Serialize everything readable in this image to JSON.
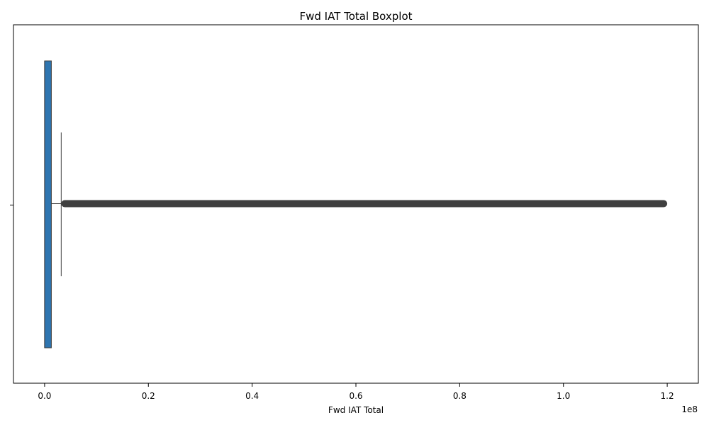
{
  "chart_data": {
    "type": "boxplot",
    "orientation": "horizontal",
    "title": "Fwd IAT Total Boxplot",
    "xlabel": "Fwd IAT Total",
    "ylabel": "",
    "axis_multiplier_label": "1e8",
    "xlim": [
      -6000000,
      126000000
    ],
    "x_ticks": [
      0,
      20000000,
      40000000,
      60000000,
      80000000,
      100000000,
      120000000
    ],
    "x_tick_labels": [
      "0.0",
      "0.2",
      "0.4",
      "0.6",
      "0.8",
      "1.0",
      "1.2"
    ],
    "box": {
      "min": 0,
      "q1": 0,
      "median": 100,
      "q3": 1300000,
      "whisker_high": 3200000,
      "outlier_range": [
        3200000,
        120000000
      ]
    },
    "colors": {
      "box_fill": "#2e75b0",
      "line": "#3f3f3f",
      "outliers": "#3f3f3f"
    }
  }
}
